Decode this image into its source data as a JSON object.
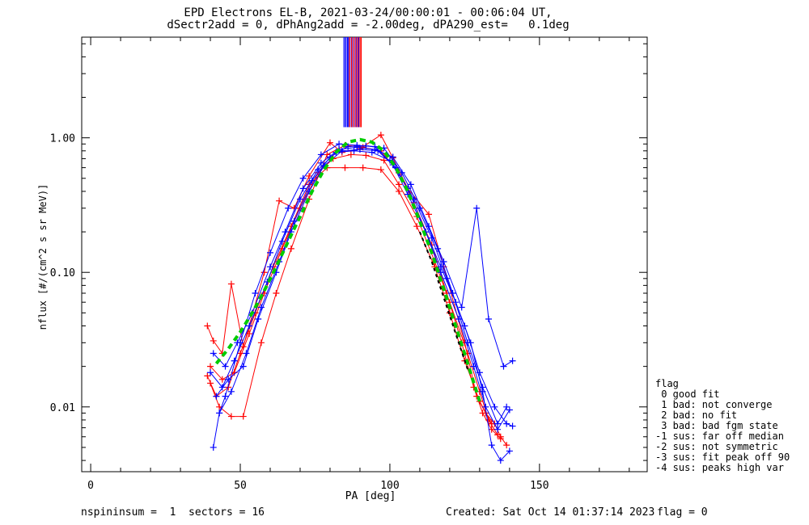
{
  "title": {
    "line1": "EPD Electrons EL-B, 2021-03-24/00:00:01 - 00:06:04 UT,",
    "line2": "dSectr2add = 0, dPhAng2add = -2.00deg, dPA290_est=   0.1deg"
  },
  "footer": {
    "left": "nspininsum =  1  sectors = 16",
    "created": "Created: Sat Oct 14 01:37:14 2023",
    "flag": "flag = 0"
  },
  "legend": {
    "title": "flag",
    "items": [
      " 0 good fit",
      " 1 bad: not converge",
      " 2 bad: no fit",
      " 3 bad: bad fgm state",
      "-1 sus: far off median",
      "-2 sus: not symmetric",
      "-3 sus: fit peak off 90",
      "-4 sus: peaks high var"
    ]
  },
  "colors": {
    "red": "#ff0000",
    "blue": "#0000ff",
    "green": "#00cc00",
    "black": "#000000"
  },
  "chart_data": {
    "type": "line",
    "xlabel": "PA [deg]",
    "ylabel": "nflux [#/(cm^2 s sr MeV)]",
    "xlim": [
      -3,
      186
    ],
    "ylim": [
      0.0033,
      5.6
    ],
    "yscale": "log",
    "xticks": [
      0,
      50,
      100,
      150
    ],
    "xtick_labels": [
      "0",
      "50",
      "100",
      "150"
    ],
    "yticks": [
      0.01,
      0.1,
      1.0
    ],
    "ytick_labels": [
      "0.01",
      "0.10",
      "1.00"
    ],
    "series": [
      {
        "color": "red",
        "x": [
          39,
          41,
          44,
          47,
          51,
          58,
          63,
          68,
          73,
          80,
          84,
          90,
          97,
          101,
          106,
          113,
          118,
          125,
          129,
          132,
          135,
          137,
          139
        ],
        "y": [
          0.04,
          0.031,
          0.025,
          0.082,
          0.028,
          0.1,
          0.34,
          0.3,
          0.52,
          0.92,
          0.78,
          0.83,
          1.05,
          0.71,
          0.42,
          0.27,
          0.11,
          0.03,
          0.012,
          0.009,
          0.0075,
          0.006,
          0.0052
        ]
      },
      {
        "color": "red",
        "x": [
          40,
          43,
          47,
          51,
          57,
          62,
          67,
          73,
          79,
          85,
          91,
          97,
          103,
          108,
          114,
          119,
          124,
          128,
          131,
          134,
          137
        ],
        "y": [
          0.015,
          0.01,
          0.0085,
          0.0085,
          0.03,
          0.07,
          0.15,
          0.35,
          0.75,
          0.88,
          0.85,
          0.8,
          0.55,
          0.33,
          0.16,
          0.07,
          0.03,
          0.014,
          0.009,
          0.0068,
          0.0058
        ]
      },
      {
        "color": "red",
        "x": [
          40,
          44,
          48,
          53,
          58,
          64,
          70,
          76,
          81,
          87,
          92,
          98,
          103,
          109,
          115,
          120,
          126,
          130,
          133,
          136
        ],
        "y": [
          0.02,
          0.016,
          0.018,
          0.035,
          0.07,
          0.15,
          0.3,
          0.55,
          0.7,
          0.75,
          0.74,
          0.68,
          0.45,
          0.26,
          0.12,
          0.06,
          0.025,
          0.013,
          0.008,
          0.0062
        ]
      },
      {
        "color": "red",
        "x": [
          39,
          42,
          46,
          50,
          55,
          61,
          67,
          73,
          79,
          85,
          91,
          97,
          103,
          109,
          115,
          120,
          125,
          130,
          134
        ],
        "y": [
          0.017,
          0.012,
          0.014,
          0.025,
          0.05,
          0.11,
          0.22,
          0.45,
          0.6,
          0.6,
          0.6,
          0.58,
          0.4,
          0.22,
          0.11,
          0.05,
          0.022,
          0.011,
          0.0075
        ]
      },
      {
        "color": "blue",
        "x": [
          41,
          43,
          45,
          50,
          55,
          60,
          66,
          71,
          77,
          83,
          89,
          95,
          101,
          106,
          112,
          117,
          122,
          127,
          131,
          134,
          137,
          140
        ],
        "y": [
          0.005,
          0.009,
          0.012,
          0.03,
          0.07,
          0.14,
          0.3,
          0.5,
          0.75,
          0.9,
          0.88,
          0.86,
          0.63,
          0.38,
          0.2,
          0.11,
          0.06,
          0.03,
          0.013,
          0.0052,
          0.004,
          0.0047
        ]
      },
      {
        "color": "blue",
        "x": [
          41,
          45,
          49,
          54,
          60,
          65,
          71,
          77,
          83,
          89,
          95,
          101,
          107,
          113,
          118,
          124,
          129,
          133,
          138,
          141
        ],
        "y": [
          0.025,
          0.02,
          0.03,
          0.05,
          0.11,
          0.2,
          0.42,
          0.65,
          0.82,
          0.85,
          0.82,
          0.72,
          0.45,
          0.22,
          0.12,
          0.055,
          0.3,
          0.045,
          0.02,
          0.022
        ]
      },
      {
        "color": "blue",
        "x": [
          42,
          46,
          51,
          56,
          62,
          67,
          73,
          78,
          84,
          90,
          96,
          102,
          108,
          114,
          119,
          125,
          130,
          135,
          139,
          141
        ],
        "y": [
          0.012,
          0.016,
          0.02,
          0.045,
          0.1,
          0.2,
          0.4,
          0.62,
          0.8,
          0.82,
          0.8,
          0.6,
          0.35,
          0.18,
          0.09,
          0.04,
          0.018,
          0.01,
          0.0075,
          0.0072
        ]
      },
      {
        "color": "blue",
        "x": [
          40,
          44,
          48,
          53,
          59,
          64,
          70,
          76,
          82,
          88,
          94,
          100,
          106,
          112,
          117,
          123,
          128,
          132,
          136,
          140
        ],
        "y": [
          0.018,
          0.014,
          0.022,
          0.04,
          0.085,
          0.17,
          0.35,
          0.58,
          0.78,
          0.8,
          0.78,
          0.68,
          0.42,
          0.2,
          0.1,
          0.045,
          0.02,
          0.01,
          0.0068,
          0.0095
        ]
      },
      {
        "color": "blue",
        "x": [
          43,
          47,
          52,
          57,
          63,
          68,
          74,
          80,
          86,
          92,
          98,
          104,
          110,
          116,
          121,
          126,
          131,
          136,
          139
        ],
        "y": [
          0.009,
          0.013,
          0.025,
          0.055,
          0.12,
          0.24,
          0.48,
          0.72,
          0.86,
          0.87,
          0.84,
          0.55,
          0.3,
          0.15,
          0.07,
          0.03,
          0.014,
          0.0075,
          0.01
        ]
      },
      {
        "color": "green",
        "style": "dashed",
        "x": [
          42,
          46,
          50,
          54,
          58,
          62,
          66,
          70,
          74,
          78,
          82,
          86,
          90,
          94,
          98,
          102,
          106,
          110,
          114,
          118,
          122,
          126,
          130
        ],
        "y": [
          0.021,
          0.027,
          0.036,
          0.05,
          0.073,
          0.11,
          0.17,
          0.26,
          0.4,
          0.58,
          0.78,
          0.93,
          0.97,
          0.93,
          0.8,
          0.6,
          0.4,
          0.24,
          0.14,
          0.075,
          0.04,
          0.021,
          0.011
        ]
      },
      {
        "color": "black",
        "style": "dashed",
        "x": [
          110,
          114,
          118,
          122,
          126
        ],
        "y": [
          0.2,
          0.12,
          0.065,
          0.035,
          0.019
        ]
      }
    ],
    "vertical_lines": {
      "ymin": 1.2,
      "red_x": [
        86.5,
        87.2,
        87.9,
        88.6,
        89.3,
        90.0,
        90.4
      ],
      "blue_x": [
        84.6,
        85.0,
        85.4,
        85.8,
        86.1,
        86.7,
        87.4,
        88.1,
        88.9,
        89.6
      ]
    }
  }
}
